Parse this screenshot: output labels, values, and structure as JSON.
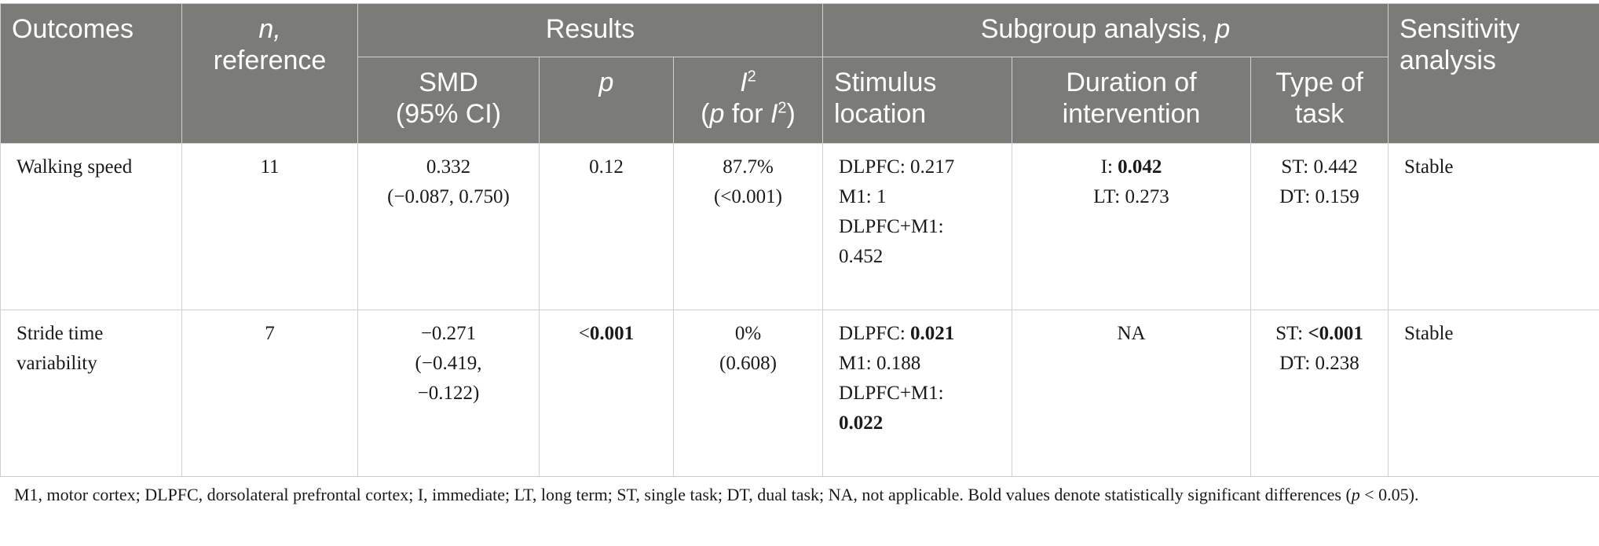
{
  "header": {
    "outcomes": "Outcomes",
    "n_italic": "n,",
    "reference": "reference",
    "results": "Results",
    "subgroup_prefix": "Subgroup analysis, ",
    "subgroup_p": "p",
    "sensitivity": "Sensitivity analysis",
    "smd_line1": "SMD",
    "smd_line2": "(95% CI)",
    "p": "p",
    "i2_I": "I",
    "i2_sup": "2",
    "i2_open": "(",
    "i2_p": "p",
    "i2_for": " for ",
    "i2_I2": "I",
    "i2_sup2": "2",
    "i2_close": ")",
    "stimulus_line1": "Stimulus",
    "stimulus_line2": "location",
    "duration_line1": "Duration of",
    "duration_line2": "intervention",
    "type_line1": "Type of",
    "type_line2": "task"
  },
  "rows": [
    {
      "outcome": "Walking speed",
      "n": "11",
      "smd_line1": "0.332",
      "smd_line2": "(−0.087, 0.750)",
      "p": "0.12",
      "i2_line1": "87.7%",
      "i2_line2": "(<0.001)",
      "stim_1_label": "DLPFC: ",
      "stim_1_value": "0.217",
      "stim_2_label": "M1: ",
      "stim_2_value": "1",
      "stim_3_label": "DLPFC+M1:",
      "stim_3_value": "0.452",
      "dur_1_label": "I: ",
      "dur_1_value": "0.042",
      "dur_2_label": "LT: ",
      "dur_2_value": "0.273",
      "task_1_label": "ST: ",
      "task_1_value": "0.442",
      "task_2_label": "DT: ",
      "task_2_value": "0.159",
      "sensitivity": "Stable"
    },
    {
      "outcome_line1": "Stride time",
      "outcome_line2": "variability",
      "n": "7",
      "smd_line1": "−0.271",
      "smd_line2": "(−0.419,",
      "smd_line3": "−0.122)",
      "p_lt": "<",
      "p": "0.001",
      "i2_line1": "0%",
      "i2_line2": "(0.608)",
      "stim_1_label": "DLPFC: ",
      "stim_1_value": "0.021",
      "stim_2_label": "M1: ",
      "stim_2_value": "0.188",
      "stim_3_label": "DLPFC+M1:",
      "stim_3_value": "0.022",
      "dur": "NA",
      "task_1_label": "ST: ",
      "task_1_value": "<0.001",
      "task_2_label": "DT: ",
      "task_2_value": "0.238",
      "sensitivity": "Stable"
    }
  ],
  "footnote_part1": "M1, motor cortex; DLPFC, dorsolateral prefrontal cortex; I, immediate; LT, long term; ST, single task; DT, dual task; NA, not applicable. Bold values denote statistically significant differences (",
  "footnote_p": "p",
  "footnote_part2": " < 0.05).",
  "colors": {
    "header_bg": "#7b7b78",
    "header_text": "#ffffff",
    "grid": "#cfcfcf"
  }
}
